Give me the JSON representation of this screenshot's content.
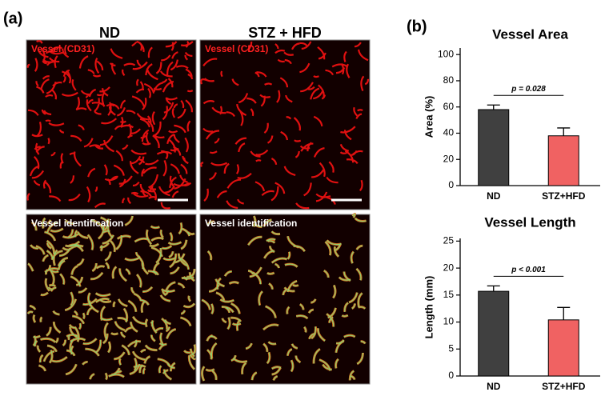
{
  "figure": {
    "panel_labels": [
      "(a)",
      "(b)"
    ],
    "columns": [
      "ND",
      "STZ + HFD"
    ],
    "image_labels": [
      "Vessel (CD31)",
      "Vessel (CD31)",
      "Vessel identification",
      "Vessel identification"
    ]
  },
  "chart_data": [
    {
      "type": "bar",
      "title": "Vessel Area",
      "y_label": "Area (%)",
      "categories": [
        "ND",
        "STZ+HFD"
      ],
      "values": [
        58,
        38
      ],
      "errors": [
        3.5,
        6
      ],
      "colors": [
        "#404040",
        "#f06262"
      ],
      "ylim": [
        0,
        105
      ],
      "yticks": [
        0,
        20,
        40,
        60,
        80,
        100
      ],
      "annotation": "p = 0.028"
    },
    {
      "type": "bar",
      "title": "Vessel Length",
      "y_label": "Length (mm)",
      "categories": [
        "ND",
        "STZ+HFD"
      ],
      "values": [
        15.7,
        10.4
      ],
      "errors": [
        1.0,
        2.3
      ],
      "colors": [
        "#404040",
        "#f06262"
      ],
      "ylim": [
        0,
        25.5
      ],
      "yticks": [
        0,
        5,
        10,
        15,
        20,
        25
      ],
      "annotation": "p < 0.001"
    }
  ]
}
